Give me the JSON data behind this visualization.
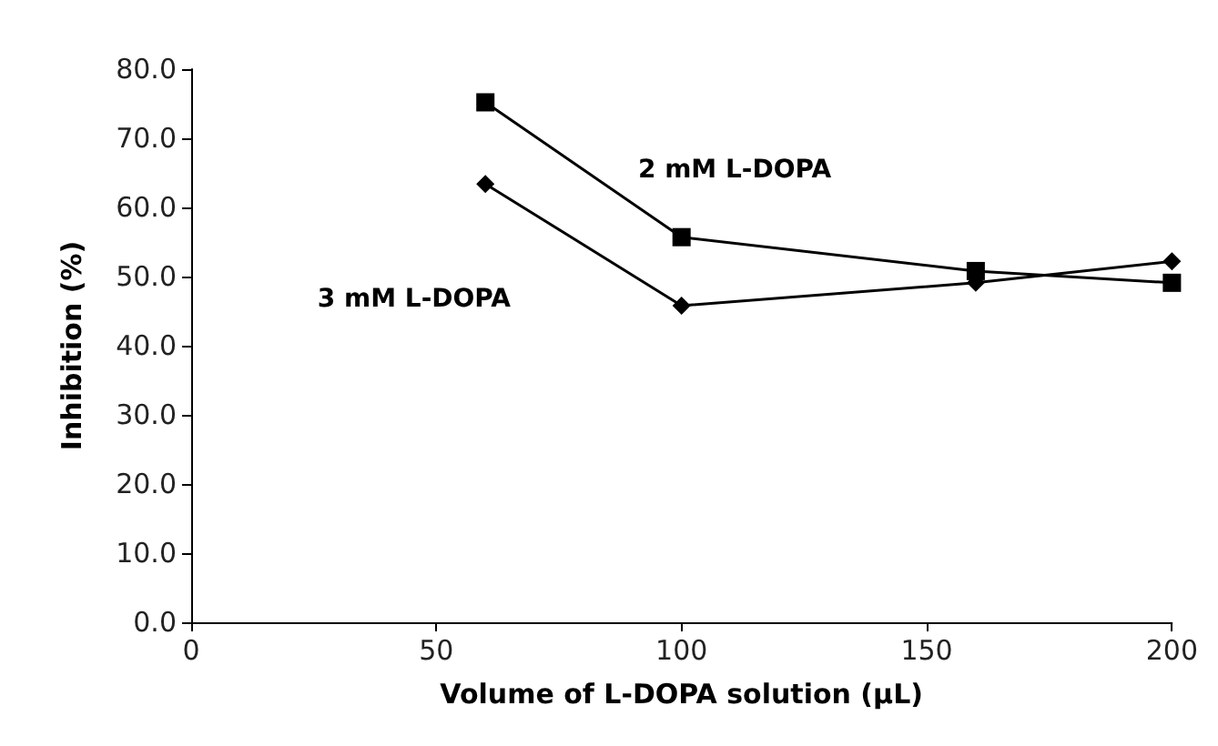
{
  "chart_data": {
    "type": "line",
    "xlabel": "Volume of L-DOPA solution (μL)",
    "ylabel": "Inhibition (%)",
    "xlim": [
      0,
      200
    ],
    "xticks": [
      0,
      50,
      100,
      150,
      200
    ],
    "ylim": [
      0,
      80
    ],
    "yticks": [
      {
        "value": 0,
        "label": "0.0"
      },
      {
        "value": 10,
        "label": "10.0"
      },
      {
        "value": 20,
        "label": "20.0"
      },
      {
        "value": 30,
        "label": "30.0"
      },
      {
        "value": 40,
        "label": "40.0"
      },
      {
        "value": 50,
        "label": "50.0"
      },
      {
        "value": 60,
        "label": "60.0"
      },
      {
        "value": 70,
        "label": "70.0"
      },
      {
        "value": 80,
        "label": "80.0"
      }
    ],
    "x": [
      60,
      100,
      160,
      200
    ],
    "series": [
      {
        "name": "2 mM L-DOPA",
        "color": "#000000",
        "marker": "square",
        "values": [
          75.2,
          55.7,
          50.8,
          49.1
        ]
      },
      {
        "name": "3 mM L-DOPA",
        "color": "#000000",
        "marker": "diamond",
        "values": [
          63.4,
          45.8,
          49.1,
          52.2
        ]
      }
    ],
    "grid": false,
    "line_style": "solid"
  }
}
